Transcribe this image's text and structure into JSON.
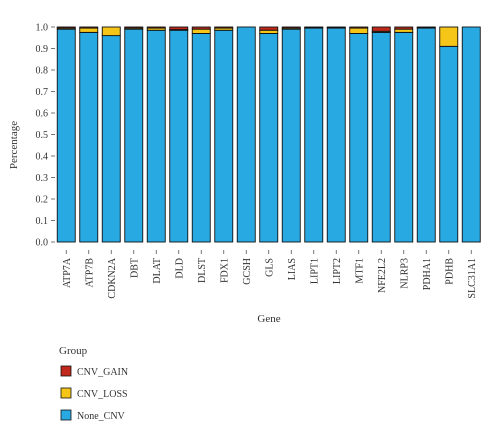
{
  "chart_data": {
    "type": "bar",
    "stacked": true,
    "xlabel": "Gene",
    "ylabel": "Percentage",
    "ylim": [
      0,
      1.0
    ],
    "yticks": [
      "0.0",
      "0.1",
      "0.2",
      "0.3",
      "0.4",
      "0.5",
      "0.6",
      "0.7",
      "0.8",
      "0.9",
      "1.0"
    ],
    "grid": false,
    "legend_position": "bottom-left",
    "legend_title": "Group",
    "categories": [
      "ATP7A",
      "ATP7B",
      "CDKN2A",
      "DBT",
      "DLAT",
      "DLD",
      "DLST",
      "FDX1",
      "GCSH",
      "GLS",
      "LIAS",
      "LIPT1",
      "LIPT2",
      "MTF1",
      "NFE2L2",
      "NLRP3",
      "PDHA1",
      "PDHB",
      "SLC31A1"
    ],
    "series": [
      {
        "name": "None_CNV",
        "color": "#29a9e1",
        "values": [
          0.99,
          0.975,
          0.96,
          0.99,
          0.985,
          0.985,
          0.97,
          0.985,
          1.0,
          0.97,
          0.99,
          0.995,
          0.995,
          0.97,
          0.975,
          0.975,
          0.995,
          0.91,
          1.0
        ]
      },
      {
        "name": "CNV_LOSS",
        "color": "#f5c518",
        "values": [
          0.005,
          0.02,
          0.04,
          0.005,
          0.01,
          0.003,
          0.02,
          0.01,
          0.0,
          0.015,
          0.005,
          0.003,
          0.003,
          0.025,
          0.005,
          0.015,
          0.003,
          0.09,
          0.0
        ]
      },
      {
        "name": "CNV_GAIN",
        "color": "#c0281b",
        "values": [
          0.005,
          0.005,
          0.0,
          0.005,
          0.005,
          0.012,
          0.01,
          0.005,
          0.0,
          0.015,
          0.005,
          0.002,
          0.002,
          0.005,
          0.02,
          0.01,
          0.002,
          0.0,
          0.0
        ]
      }
    ],
    "legend_order": [
      "CNV_GAIN",
      "CNV_LOSS",
      "None_CNV"
    ]
  }
}
